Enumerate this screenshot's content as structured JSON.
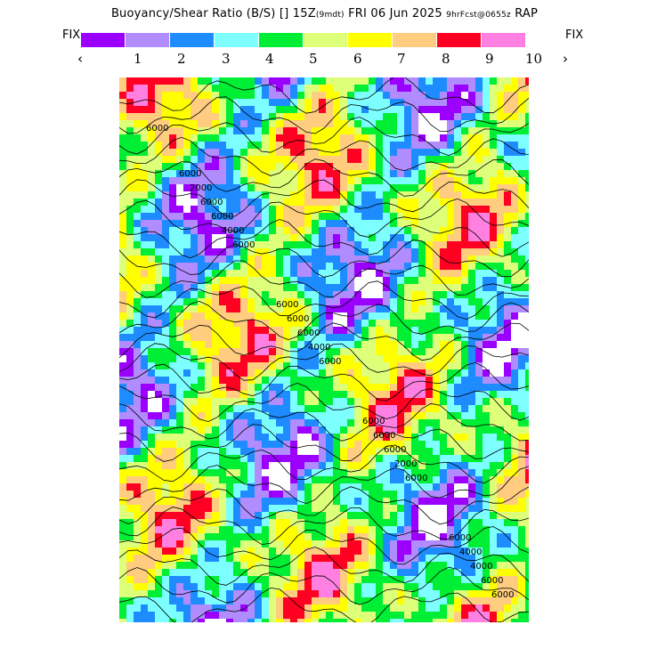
{
  "header": {
    "title_main": "Buoyancy/Shear Ratio (B/S)",
    "title_icon": "[]",
    "title_time": "15Z",
    "title_time_sub": "(9mdt)",
    "title_date": "FRI 06 Jun 2025",
    "title_fcst": "9hrFcst@0655z",
    "title_model": "RAP"
  },
  "controls": {
    "fix_left": "FIX",
    "fix_right": "FIX",
    "prev": "‹",
    "next": "›"
  },
  "legend": {
    "colors": [
      "#9b00ff",
      "#b08cff",
      "#1e8cff",
      "#7dffff",
      "#00ee33",
      "#ddff7a",
      "#ffff00",
      "#ffcc80",
      "#ff0022",
      "#ff80e0"
    ],
    "labels": [
      "1",
      "2",
      "3",
      "4",
      "5",
      "6",
      "7",
      "8",
      "9",
      "10"
    ]
  },
  "map": {
    "contour_labels": [
      "6000",
      "6000",
      "6000",
      "6000",
      "6000",
      "4000",
      "4000",
      "2000",
      "6000",
      "6000",
      "6000",
      "6000",
      "4000",
      "6000",
      "6000",
      "6000",
      "4000",
      "2000",
      "6000",
      "6000",
      "6000",
      "6000"
    ]
  }
}
